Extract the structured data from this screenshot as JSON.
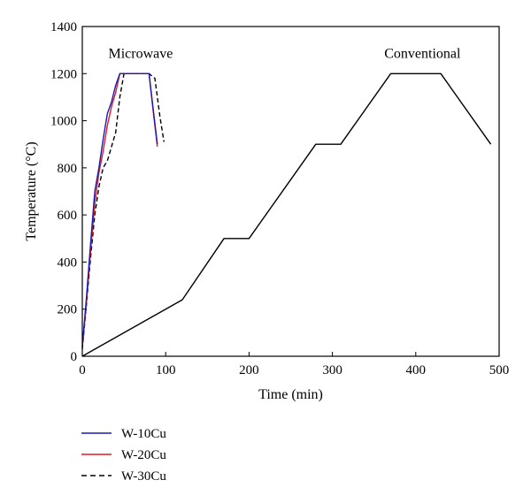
{
  "chart_data": {
    "type": "line",
    "xlabel": "Time (min)",
    "ylabel": "Temperature (°C)",
    "xlim": [
      0,
      500
    ],
    "ylim": [
      0,
      1400
    ],
    "xticks": [
      0,
      100,
      200,
      300,
      400,
      500
    ],
    "yticks": [
      0,
      200,
      400,
      600,
      800,
      1000,
      1200,
      1400
    ],
    "grid": false,
    "legend_position": "bottom-left",
    "annotations": [
      {
        "text": "Microwave",
        "x": 70,
        "y": 1290
      },
      {
        "text": "Conventional",
        "x": 408,
        "y": 1290
      }
    ],
    "series": [
      {
        "name": "W-10Cu",
        "color": "#1a1ab4",
        "dash": "solid",
        "x": [
          0,
          5,
          10,
          15,
          20,
          25,
          30,
          35,
          40,
          45,
          50,
          60,
          70,
          80,
          85,
          90
        ],
        "y": [
          40,
          250,
          480,
          700,
          800,
          920,
          1030,
          1080,
          1150,
          1200,
          1200,
          1200,
          1200,
          1200,
          1050,
          900
        ]
      },
      {
        "name": "W-20Cu",
        "color": "#e01b24",
        "dash": "solid",
        "x": [
          0,
          5,
          10,
          15,
          20,
          25,
          30,
          35,
          40,
          45,
          50,
          60,
          70,
          80,
          85,
          90
        ],
        "y": [
          40,
          230,
          450,
          650,
          780,
          870,
          980,
          1060,
          1120,
          1200,
          1200,
          1200,
          1200,
          1200,
          1040,
          890
        ]
      },
      {
        "name": "W-30Cu",
        "color": "#000000",
        "dash": "dashed",
        "x": [
          0,
          5,
          10,
          15,
          20,
          25,
          30,
          35,
          40,
          45,
          50,
          60,
          70,
          80,
          87,
          93,
          98
        ],
        "y": [
          30,
          220,
          420,
          600,
          720,
          800,
          830,
          890,
          950,
          1100,
          1200,
          1200,
          1200,
          1200,
          1180,
          1020,
          910
        ]
      },
      {
        "name": "Conventional",
        "color": "#000000",
        "dash": "solid",
        "x": [
          0,
          120,
          170,
          200,
          280,
          310,
          370,
          430,
          490
        ],
        "y": [
          0,
          240,
          500,
          500,
          900,
          900,
          1200,
          1200,
          900
        ]
      }
    ],
    "legend": [
      {
        "label": "W-10Cu",
        "color": "#1a1ab4",
        "dash": "solid"
      },
      {
        "label": "W-20Cu",
        "color": "#e01b24",
        "dash": "solid"
      },
      {
        "label": "W-30Cu",
        "color": "#000000",
        "dash": "dashed"
      }
    ]
  }
}
